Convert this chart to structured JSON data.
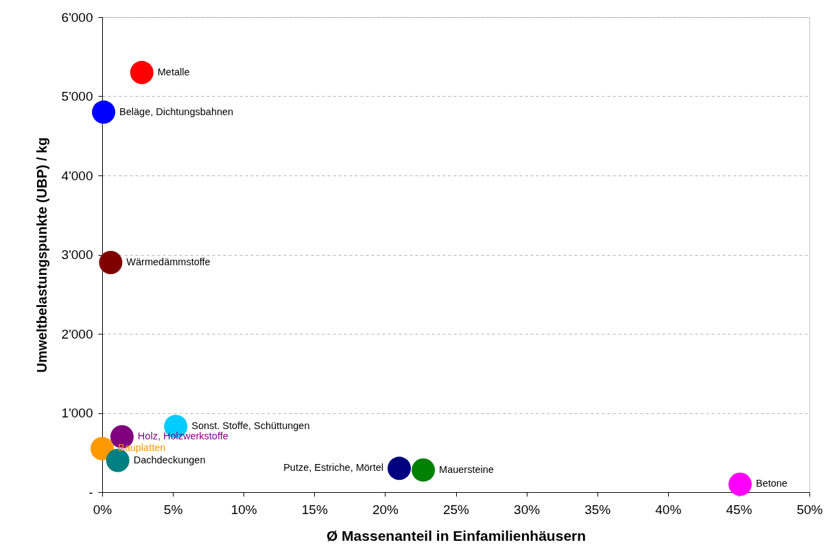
{
  "chart_data": {
    "type": "scatter",
    "xlabel": "Ø Massenanteil in Einfamilienhäusern",
    "ylabel": "Umweltbelastungspunkte (UBP) / kg",
    "xlim": [
      0,
      50
    ],
    "xticks": [
      {
        "value": 0,
        "label": "0%"
      },
      {
        "value": 5,
        "label": "5%"
      },
      {
        "value": 10,
        "label": "10%"
      },
      {
        "value": 15,
        "label": "15%"
      },
      {
        "value": 20,
        "label": "20%"
      },
      {
        "value": 25,
        "label": "25%"
      },
      {
        "value": 30,
        "label": "30%"
      },
      {
        "value": 35,
        "label": "35%"
      },
      {
        "value": 40,
        "label": "40%"
      },
      {
        "value": 45,
        "label": "45%"
      },
      {
        "value": 50,
        "label": "50%"
      }
    ],
    "ylim": [
      0,
      6000
    ],
    "yticks": [
      {
        "value": 0,
        "label": "-"
      },
      {
        "value": 1000,
        "label": "1'000"
      },
      {
        "value": 2000,
        "label": "2'000"
      },
      {
        "value": 3000,
        "label": "3'000"
      },
      {
        "value": 4000,
        "label": "4'000"
      },
      {
        "value": 5000,
        "label": "5'000"
      },
      {
        "value": 6000,
        "label": "6'000"
      }
    ],
    "grid": "y",
    "legend": false,
    "marker": "circle",
    "series": [
      {
        "name": "Metalle",
        "color": "#ff0000",
        "x": [
          2.8
        ],
        "values": [
          5300
        ]
      },
      {
        "name": "Beläge, Dichtungsbahnen",
        "color": "#0000ff",
        "x": [
          0.1
        ],
        "values": [
          4800
        ]
      },
      {
        "name": "Wärmedämmstoffe",
        "color": "#800000",
        "x": [
          0.6
        ],
        "values": [
          2900
        ]
      },
      {
        "name": "Sonst. Stoffe, Schüttungen",
        "color": "#00ccff",
        "x": [
          5.2
        ],
        "values": [
          830
        ]
      },
      {
        "name": "Holz, Holzwerkstoffe",
        "color": "#800080",
        "x": [
          1.4
        ],
        "values": [
          700
        ]
      },
      {
        "name": "Bauplatten",
        "color": "#ff9900",
        "x": [
          0
        ],
        "values": [
          550
        ]
      },
      {
        "name": "Dachdeckungen",
        "color": "#008080",
        "x": [
          1.1
        ],
        "values": [
          400
        ]
      },
      {
        "name": "Putze, Estriche, Mörtel",
        "color": "#000080",
        "x": [
          21.0
        ],
        "values": [
          300
        ]
      },
      {
        "name": "Mauersteine",
        "color": "#008000",
        "x": [
          22.7
        ],
        "values": [
          280
        ]
      },
      {
        "name": "Betone",
        "color": "#ff00ff",
        "x": [
          45.1
        ],
        "values": [
          100
        ]
      }
    ]
  }
}
